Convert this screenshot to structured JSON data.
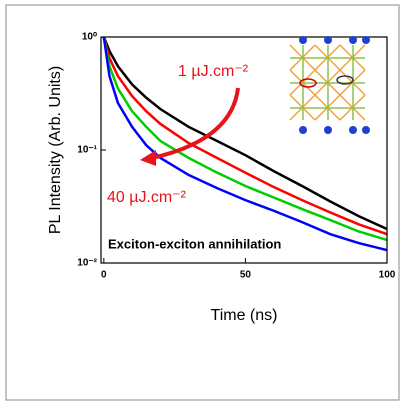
{
  "chart_data": {
    "type": "line",
    "xlabel": "Time (ns)",
    "ylabel": "PL Intensity (Arb. Units)",
    "x": [
      0,
      2,
      5,
      10,
      15,
      20,
      30,
      40,
      50,
      60,
      70,
      80,
      90,
      100
    ],
    "series": [
      {
        "color": "#000000",
        "values": [
          1,
          0.75,
          0.55,
          0.38,
          0.29,
          0.23,
          0.16,
          0.12,
          0.09,
          0.065,
          0.048,
          0.035,
          0.026,
          0.02
        ]
      },
      {
        "color": "#ff0000",
        "values": [
          1,
          0.65,
          0.45,
          0.3,
          0.22,
          0.17,
          0.115,
          0.085,
          0.063,
          0.047,
          0.036,
          0.028,
          0.022,
          0.018
        ]
      },
      {
        "color": "#00cc00",
        "values": [
          1,
          0.55,
          0.35,
          0.22,
          0.16,
          0.12,
          0.085,
          0.063,
          0.048,
          0.038,
          0.03,
          0.024,
          0.019,
          0.016
        ]
      },
      {
        "color": "#0000ff",
        "values": [
          1,
          0.45,
          0.26,
          0.16,
          0.11,
          0.085,
          0.06,
          0.046,
          0.036,
          0.029,
          0.023,
          0.018,
          0.015,
          0.013
        ]
      }
    ],
    "xlim": [
      -1,
      100
    ],
    "xticks": [
      0,
      50,
      100
    ],
    "ylim": [
      0.01,
      1
    ],
    "ylog": true,
    "yticks": [
      {
        "value": 1,
        "label": "10⁰"
      },
      {
        "value": 0.1,
        "label": "10⁻¹"
      },
      {
        "value": 0.01,
        "label": "10⁻²"
      }
    ],
    "annotations": [
      "1 µJ.cm⁻²",
      "40 µJ.cm⁻²",
      "Exciton-exciton annihilation"
    ],
    "annotation_color": "#e8141b"
  }
}
